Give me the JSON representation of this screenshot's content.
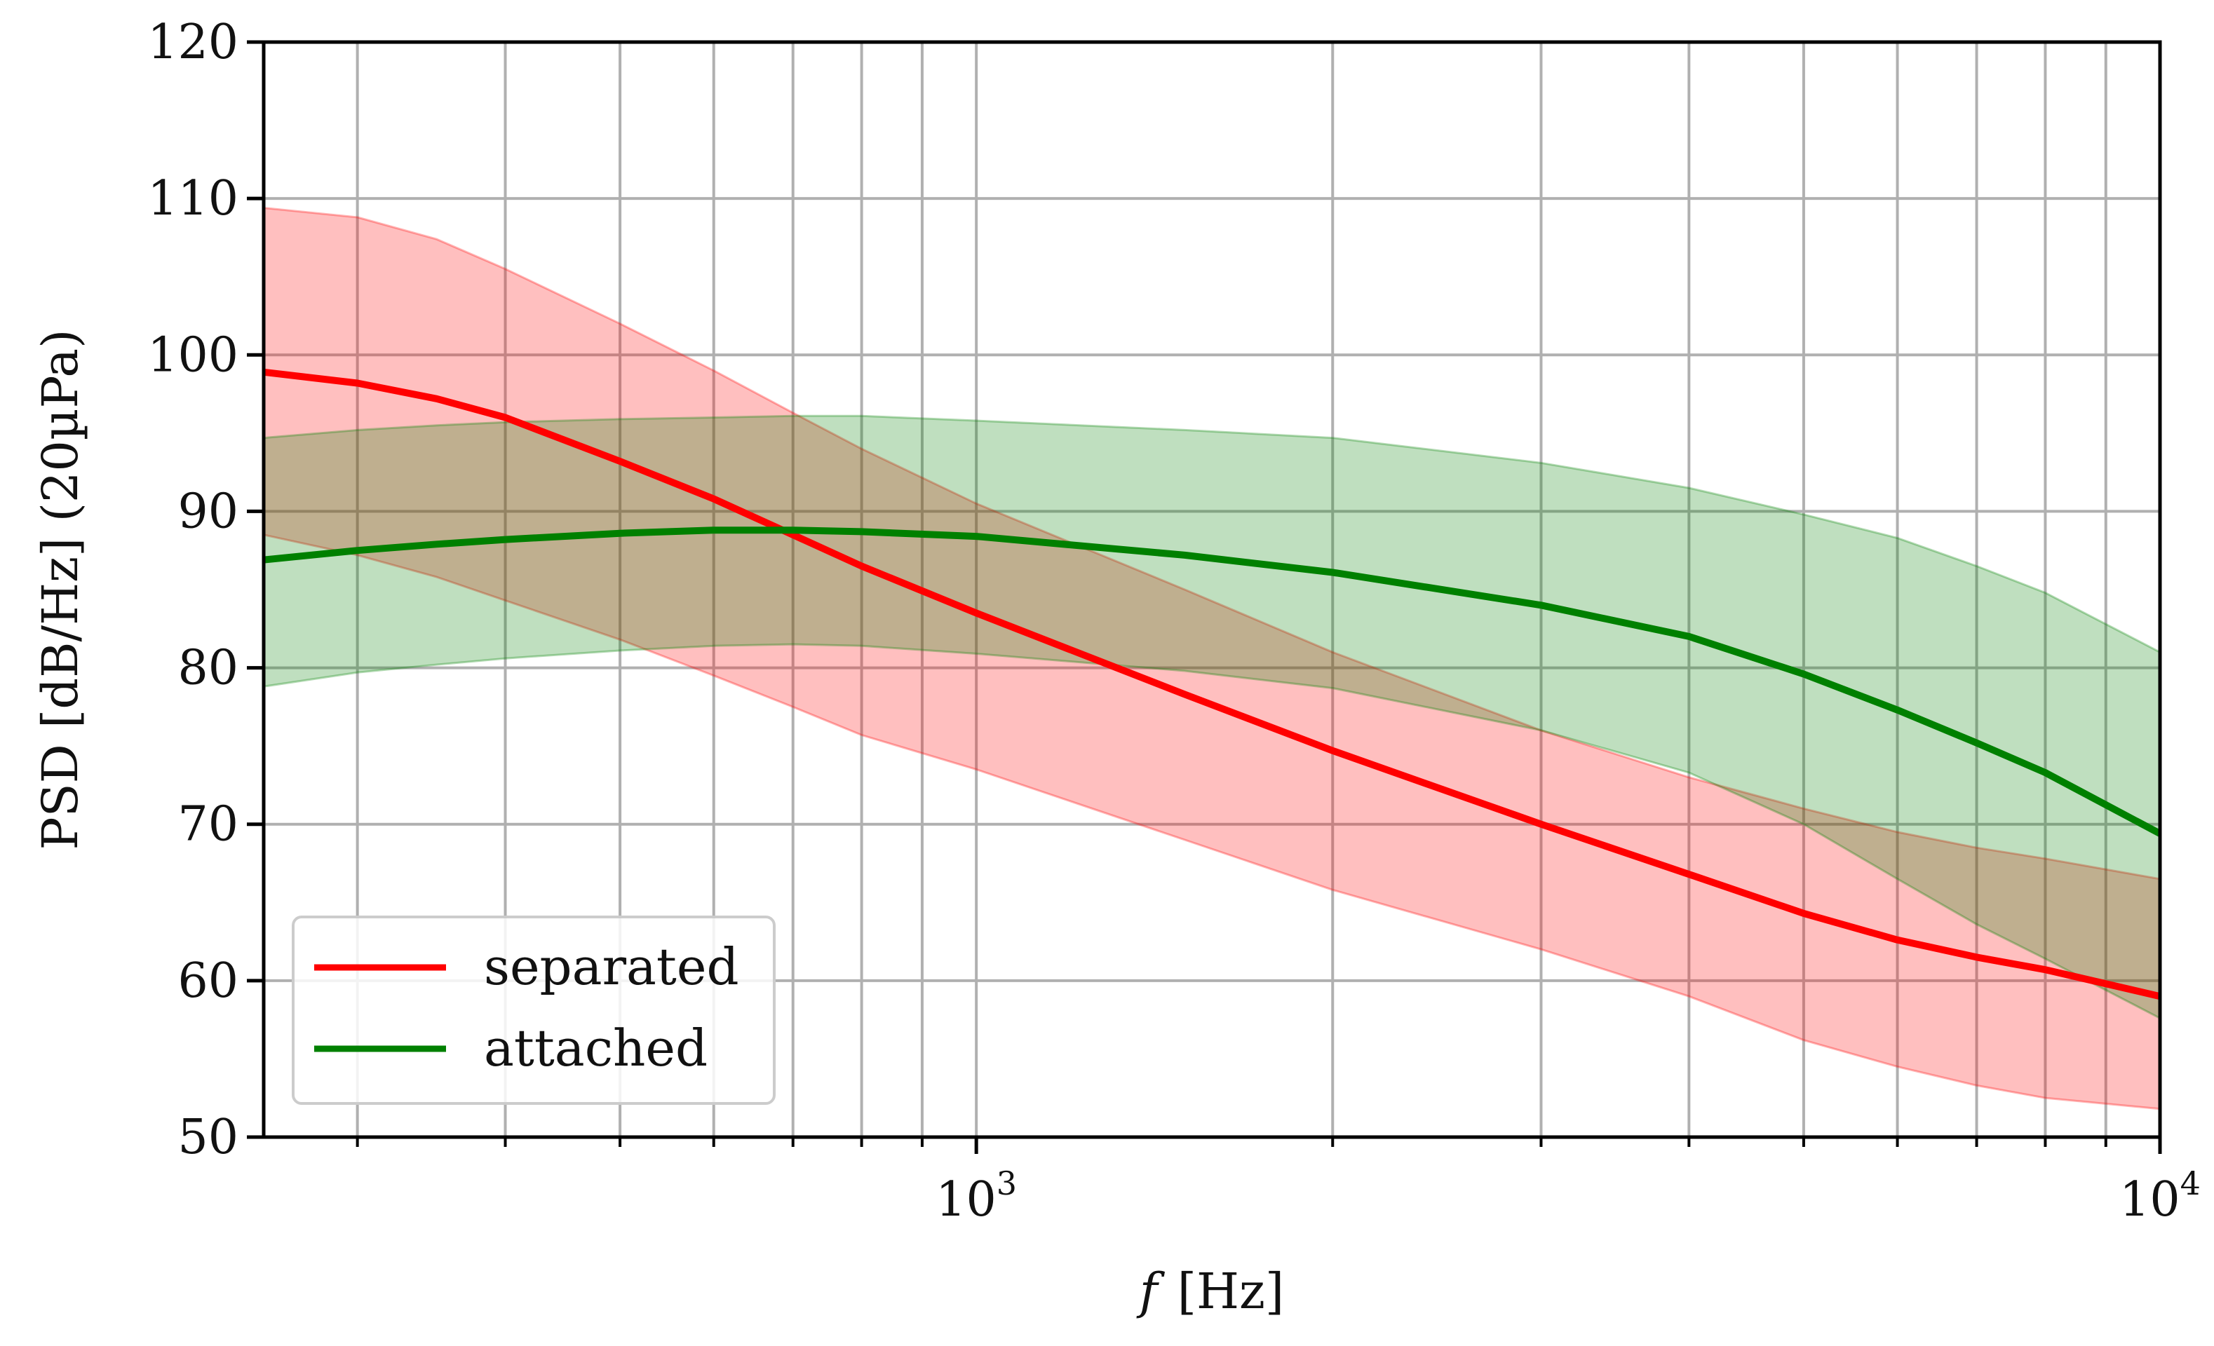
{
  "chart_data": {
    "type": "line",
    "title": "",
    "xscale": "log",
    "xlim": [
      250,
      10000
    ],
    "ylim": [
      50,
      120
    ],
    "grid": true,
    "xlabel_italic": "f",
    "xlabel_unit": "[Hz]",
    "ylabel": "PSD [dB/Hz] (20µPa)",
    "x_major_ticks": [
      {
        "value": 1000,
        "base": "10",
        "exp": "3"
      },
      {
        "value": 10000,
        "base": "10",
        "exp": "4"
      }
    ],
    "x_minor_ticks": [
      300,
      400,
      500,
      600,
      700,
      800,
      900,
      2000,
      3000,
      4000,
      5000,
      6000,
      7000,
      8000,
      9000
    ],
    "y_ticks": [
      {
        "value": 50,
        "label": "50"
      },
      {
        "value": 60,
        "label": "60"
      },
      {
        "value": 70,
        "label": "70"
      },
      {
        "value": 80,
        "label": "80"
      },
      {
        "value": 90,
        "label": "90"
      },
      {
        "value": 100,
        "label": "100"
      },
      {
        "value": 110,
        "label": "110"
      },
      {
        "value": 120,
        "label": "120"
      }
    ],
    "legend_position": "lower-left",
    "x": [
      250,
      300,
      350,
      400,
      500,
      600,
      700,
      800,
      1000,
      1500,
      2000,
      3000,
      4000,
      5000,
      6000,
      7000,
      8000,
      10000
    ],
    "series": [
      {
        "name": "separated",
        "color": "#ff0000",
        "values": [
          98.9,
          98.2,
          97.2,
          96.0,
          93.2,
          90.8,
          88.5,
          86.5,
          83.5,
          78.3,
          74.7,
          70.0,
          66.8,
          64.3,
          62.6,
          61.5,
          60.7,
          59.0
        ],
        "upper": [
          109.4,
          108.8,
          107.4,
          105.5,
          102.0,
          99.0,
          96.3,
          94.0,
          90.5,
          85.0,
          81.0,
          76.0,
          73.0,
          71.0,
          69.5,
          68.5,
          67.8,
          66.5
        ],
        "lower": [
          88.5,
          87.2,
          85.8,
          84.3,
          81.8,
          79.5,
          77.5,
          75.7,
          73.5,
          69.0,
          65.8,
          62.0,
          59.0,
          56.2,
          54.5,
          53.3,
          52.5,
          51.8
        ]
      },
      {
        "name": "attached",
        "color": "#008000",
        "values": [
          86.9,
          87.5,
          87.9,
          88.2,
          88.6,
          88.8,
          88.8,
          88.7,
          88.4,
          87.2,
          86.1,
          84.0,
          82.0,
          79.6,
          77.3,
          75.2,
          73.3,
          69.4
        ],
        "upper": [
          94.7,
          95.2,
          95.5,
          95.7,
          95.9,
          96.0,
          96.1,
          96.1,
          95.8,
          95.2,
          94.7,
          93.1,
          91.5,
          89.8,
          88.3,
          86.5,
          84.8,
          81.0
        ],
        "lower": [
          78.8,
          79.7,
          80.2,
          80.6,
          81.1,
          81.4,
          81.5,
          81.4,
          80.9,
          79.8,
          78.7,
          76.0,
          73.3,
          70.0,
          66.5,
          63.6,
          61.4,
          57.6
        ]
      }
    ]
  }
}
